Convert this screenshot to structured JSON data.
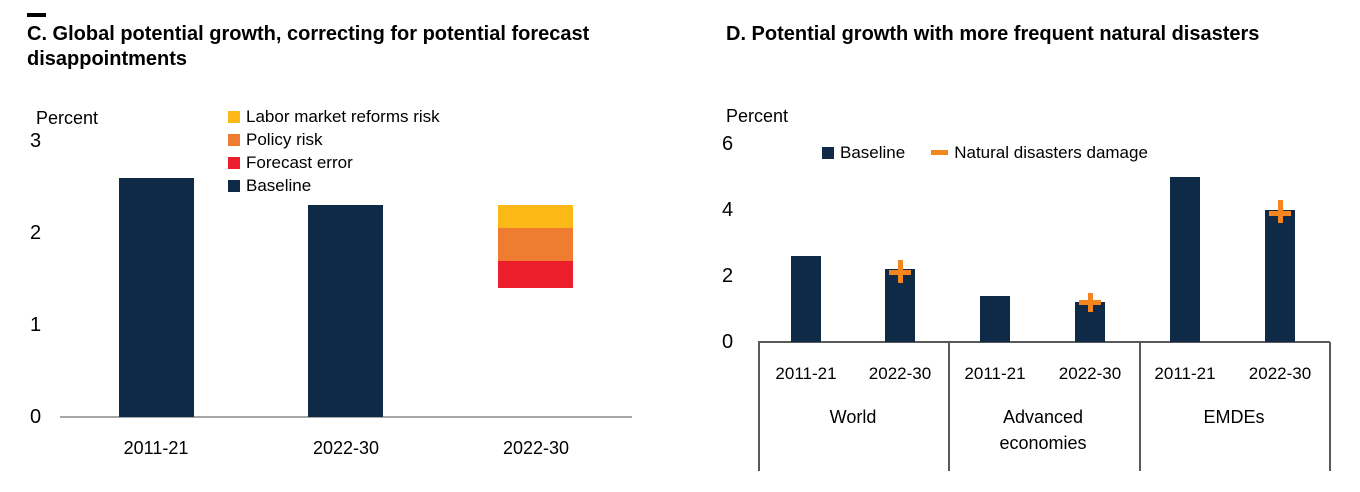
{
  "page": {
    "kind": "two-panel economic chart figure"
  },
  "colors": {
    "baseline_navy": "#0e2a47",
    "forecast_error_red": "#ec1e2d",
    "policy_risk_orange": "#ee7d31",
    "labor_reforms_yellow": "#fcb817",
    "damage_marker_orange": "#f5861f",
    "axis_gray_panelC": "#a6a6a6",
    "axis_gray_panelD": "#595959",
    "text_black": "#000000"
  },
  "chart_data": [
    {
      "panel": "C",
      "type": "bar",
      "title": "C. Global potential growth, correcting for potential forecast disappointments",
      "ylabel": "Percent",
      "ylim": [
        0,
        3
      ],
      "yticks": [
        0,
        1,
        2,
        3
      ],
      "grid": false,
      "legend_position": "top-center, vertical list",
      "legend": [
        {
          "label": "Labor market reforms risk",
          "color": "#fcb817"
        },
        {
          "label": "Policy risk",
          "color": "#ee7d31"
        },
        {
          "label": "Forecast error",
          "color": "#ec1e2d"
        },
        {
          "label": "Baseline",
          "color": "#0e2a47"
        }
      ],
      "categories": [
        "2011-21",
        "2022-30",
        "2022-30"
      ],
      "bars": [
        {
          "category": "2011-21",
          "kind": "baseline",
          "value": 2.6,
          "color": "#0e2a47"
        },
        {
          "category": "2022-30",
          "kind": "baseline",
          "value": 2.3,
          "color": "#0e2a47"
        },
        {
          "category": "2022-30",
          "kind": "stacked-floating",
          "base": 1.4,
          "top": 2.3,
          "segments": [
            {
              "name": "Forecast error",
              "from": 1.4,
              "to": 1.7,
              "color": "#ec1e2d"
            },
            {
              "name": "Policy risk",
              "from": 1.7,
              "to": 2.05,
              "color": "#ee7d31"
            },
            {
              "name": "Labor market reforms risk",
              "from": 2.05,
              "to": 2.3,
              "color": "#fcb817"
            }
          ]
        }
      ]
    },
    {
      "panel": "D",
      "type": "bar",
      "title": "D. Potential growth with more frequent natural disasters",
      "ylabel": "Percent",
      "ylim": [
        0,
        6
      ],
      "yticks": [
        0,
        2,
        4,
        6
      ],
      "grid": false,
      "legend_position": "top, horizontal",
      "legend": [
        {
          "label": "Baseline",
          "swatch": "square",
          "color": "#0e2a47"
        },
        {
          "label": "Natural disasters damage",
          "swatch": "dash",
          "color": "#f5861f"
        }
      ],
      "group_periods": [
        "2011-21",
        "2022-30"
      ],
      "groups": [
        {
          "label": "World",
          "bars": [
            {
              "period": "2011-21",
              "baseline": 2.6
            },
            {
              "period": "2022-30",
              "baseline": 2.2,
              "damage_marker": 2.1,
              "damage_range": [
                1.8,
                2.5
              ]
            }
          ]
        },
        {
          "label": "Advanced economies",
          "bars": [
            {
              "period": "2011-21",
              "baseline": 1.4
            },
            {
              "period": "2022-30",
              "baseline": 1.2,
              "damage_marker": 1.2,
              "damage_range": [
                0.9,
                1.5
              ]
            }
          ]
        },
        {
          "label": "EMDEs",
          "bars": [
            {
              "period": "2011-21",
              "baseline": 5.0
            },
            {
              "period": "2022-30",
              "baseline": 4.0,
              "damage_marker": 3.9,
              "damage_range": [
                3.6,
                4.3
              ]
            }
          ]
        }
      ]
    }
  ]
}
